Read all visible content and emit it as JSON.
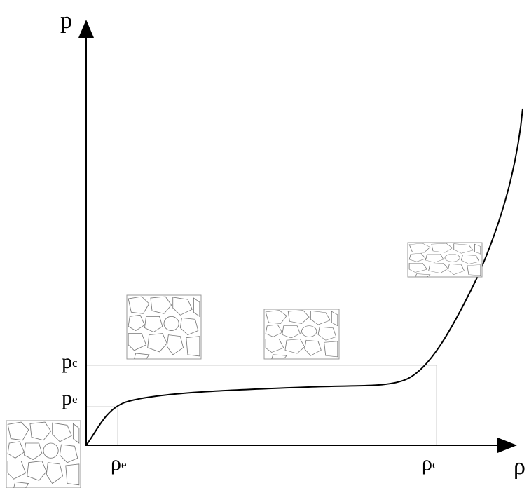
{
  "axes": {
    "y_label": "p",
    "x_label": "ρ"
  },
  "levels": [
    {
      "symbol": "p",
      "subscript": "c"
    },
    {
      "symbol": "p",
      "subscript": "e"
    },
    {
      "symbol": "ρ",
      "subscript": "e"
    },
    {
      "symbol": "ρ",
      "subscript": "c"
    }
  ]
}
